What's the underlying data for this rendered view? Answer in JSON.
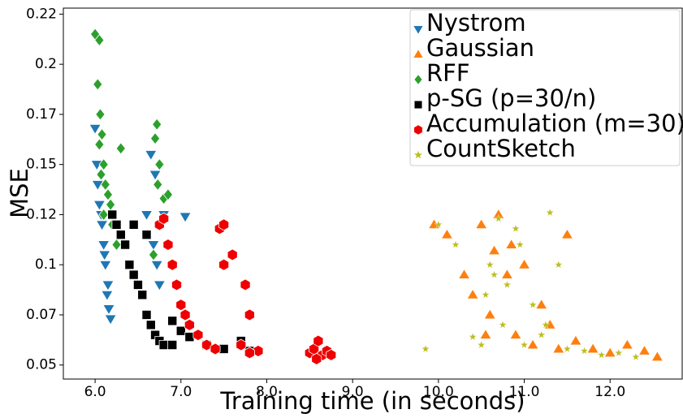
{
  "chart_data": {
    "type": "scatter",
    "x_label": "Training time (in seconds)",
    "y_label": "MSE",
    "xlim": [
      5.63,
      12.84
    ],
    "ylim": [
      0.043,
      0.228
    ],
    "xticks": [
      {
        "value": 6,
        "label": "6.0"
      },
      {
        "value": 7,
        "label": "7.0"
      },
      {
        "value": 8,
        "label": "8.0"
      },
      {
        "value": 9,
        "label": "9.0"
      },
      {
        "value": 10,
        "label": "10.0"
      },
      {
        "value": 11,
        "label": "11.0"
      },
      {
        "value": 12,
        "label": "12.0"
      }
    ],
    "yticks": [
      0.05,
      {
        "value": 0.075,
        "label": "0.07"
      },
      0.1,
      {
        "value": 0.125,
        "label": "0.12"
      },
      0.15,
      {
        "value": 0.175,
        "label": "0.17"
      },
      0.2,
      {
        "value": 0.225,
        "label": "0.22"
      }
    ],
    "legend": "upper right",
    "series": [
      {
        "name": "Nystrom",
        "color": "#1f77b4",
        "marker": "triangle-down",
        "x": [
          6.0,
          6.02,
          6.05,
          6.08,
          6.1,
          6.12,
          6.15,
          6.18,
          6.03,
          6.07,
          6.11,
          6.14,
          6.16,
          6.6,
          6.65,
          6.7,
          6.75,
          6.68,
          6.72,
          7.05,
          6.8
        ],
        "y": [
          0.168,
          0.15,
          0.13,
          0.12,
          0.11,
          0.1,
          0.09,
          0.073,
          0.14,
          0.125,
          0.105,
          0.085,
          0.078,
          0.125,
          0.155,
          0.145,
          0.09,
          0.11,
          0.1,
          0.124,
          0.125
        ]
      },
      {
        "name": "Gaussian",
        "color": "#ff7f0e",
        "marker": "triangle-up",
        "x": [
          9.95,
          10.1,
          10.3,
          10.5,
          10.6,
          10.7,
          10.8,
          10.9,
          11.0,
          11.1,
          11.2,
          11.4,
          11.5,
          11.6,
          11.8,
          12.0,
          12.2,
          12.4,
          12.55,
          10.4,
          10.65,
          10.85,
          11.3,
          10.55
        ],
        "y": [
          0.12,
          0.115,
          0.095,
          0.12,
          0.075,
          0.125,
          0.095,
          0.065,
          0.1,
          0.06,
          0.08,
          0.058,
          0.115,
          0.062,
          0.058,
          0.056,
          0.06,
          0.057,
          0.054,
          0.085,
          0.107,
          0.11,
          0.07,
          0.065
        ]
      },
      {
        "name": "RFF",
        "color": "#2ca02c",
        "marker": "diamond",
        "x": [
          6.0,
          6.05,
          6.03,
          6.06,
          6.08,
          6.1,
          6.12,
          6.15,
          6.18,
          6.2,
          6.25,
          6.3,
          6.1,
          6.05,
          6.07,
          6.72,
          6.7,
          6.75,
          6.73,
          6.8,
          6.85,
          6.68
        ],
        "y": [
          0.215,
          0.212,
          0.19,
          0.175,
          0.165,
          0.15,
          0.14,
          0.135,
          0.13,
          0.12,
          0.11,
          0.158,
          0.125,
          0.16,
          0.145,
          0.17,
          0.163,
          0.15,
          0.14,
          0.133,
          0.135,
          0.105
        ]
      },
      {
        "name": "p-SG (p=30/n)",
        "color": "#000000",
        "marker": "square",
        "x": [
          6.2,
          6.25,
          6.3,
          6.35,
          6.4,
          6.45,
          6.5,
          6.55,
          6.6,
          6.65,
          6.7,
          6.75,
          6.8,
          6.9,
          7.0,
          7.1,
          7.3,
          7.5,
          7.7,
          7.8,
          6.45,
          6.6,
          6.9
        ],
        "y": [
          0.125,
          0.12,
          0.115,
          0.11,
          0.1,
          0.095,
          0.09,
          0.085,
          0.075,
          0.07,
          0.065,
          0.062,
          0.06,
          0.06,
          0.067,
          0.064,
          0.06,
          0.058,
          0.062,
          0.057,
          0.12,
          0.115,
          0.072
        ]
      },
      {
        "name": "Accumulation (m=30)",
        "color": "#ee0000",
        "marker": "hexagon",
        "x": [
          6.75,
          6.8,
          6.85,
          6.9,
          6.95,
          7.0,
          7.05,
          7.1,
          7.2,
          7.3,
          7.4,
          7.45,
          7.5,
          7.6,
          7.7,
          7.75,
          7.8,
          7.9,
          7.5,
          7.8,
          8.5,
          8.55,
          8.6,
          8.65,
          8.7,
          8.75,
          8.58
        ],
        "y": [
          0.12,
          0.123,
          0.11,
          0.1,
          0.09,
          0.08,
          0.075,
          0.07,
          0.065,
          0.06,
          0.058,
          0.118,
          0.12,
          0.105,
          0.06,
          0.09,
          0.075,
          0.057,
          0.1,
          0.056,
          0.056,
          0.058,
          0.062,
          0.055,
          0.057,
          0.055,
          0.053
        ]
      },
      {
        "name": "CountSketch",
        "color": "#bcbd22",
        "marker": "star",
        "x": [
          9.85,
          10.0,
          10.2,
          10.4,
          10.5,
          10.6,
          10.7,
          10.75,
          10.8,
          10.9,
          11.0,
          11.1,
          11.2,
          11.3,
          11.4,
          11.5,
          11.7,
          11.9,
          12.1,
          12.3,
          10.55,
          10.65,
          10.95,
          11.25
        ],
        "y": [
          0.058,
          0.12,
          0.11,
          0.064,
          0.06,
          0.1,
          0.123,
          0.07,
          0.09,
          0.118,
          0.06,
          0.08,
          0.065,
          0.126,
          0.1,
          0.058,
          0.057,
          0.055,
          0.056,
          0.054,
          0.085,
          0.095,
          0.11,
          0.07
        ]
      }
    ]
  }
}
